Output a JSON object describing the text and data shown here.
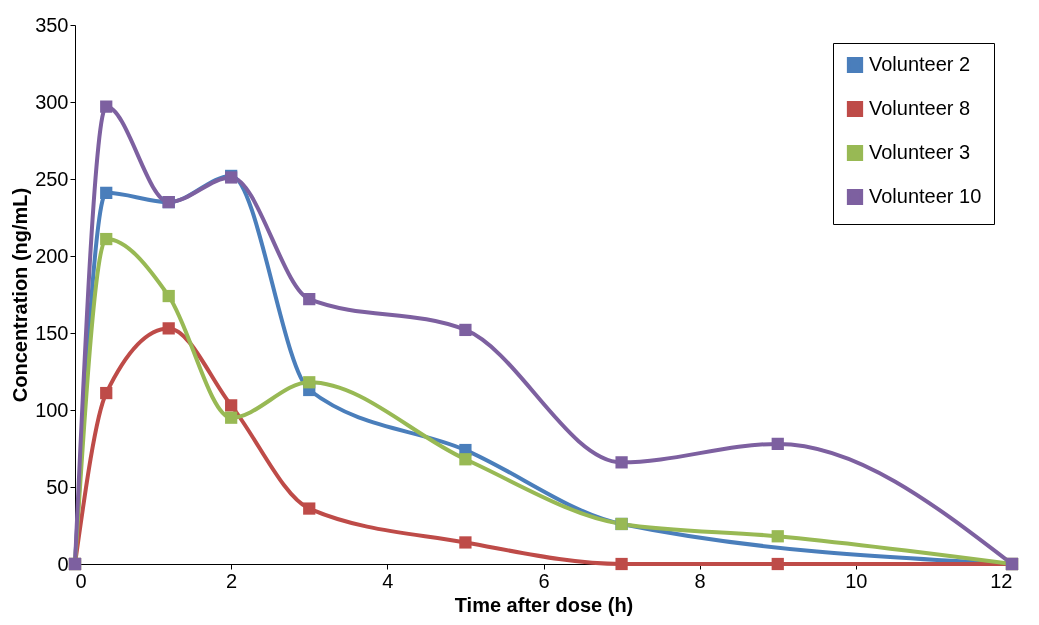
{
  "chart_data": {
    "type": "line",
    "xlabel": "Time after dose (h)",
    "ylabel": "Concentration (ng/mL)",
    "x": [
      0,
      0.4,
      1.2,
      2,
      3,
      5,
      7,
      9,
      12
    ],
    "series": [
      {
        "name": "Volunteer 2",
        "color": "#4a7ebb",
        "x": [
          0,
          0.4,
          1.2,
          2,
          3,
          5,
          7,
          12
        ],
        "values": [
          0,
          241,
          235,
          252,
          113,
          74,
          26,
          0
        ]
      },
      {
        "name": "Volunteer 8",
        "color": "#be4b48",
        "values": [
          0,
          111,
          153,
          103,
          36,
          14,
          0,
          0,
          0
        ]
      },
      {
        "name": "Volunteer 3",
        "color": "#98b954",
        "values": [
          0,
          211,
          174,
          95,
          118,
          68,
          26,
          18,
          0
        ]
      },
      {
        "name": "Volunteer 10",
        "color": "#7d60a0",
        "values": [
          0,
          297,
          235,
          251,
          172,
          152,
          66,
          78,
          0
        ]
      }
    ],
    "xlim": [
      0,
      12
    ],
    "xticks": [
      0,
      2,
      4,
      6,
      8,
      10,
      12
    ],
    "ylim": [
      0,
      350
    ],
    "yticks": [
      0,
      50,
      100,
      150,
      200,
      250,
      300,
      350
    ],
    "grid": false,
    "legend": "top right",
    "marker": "square",
    "line_style": "solid"
  }
}
